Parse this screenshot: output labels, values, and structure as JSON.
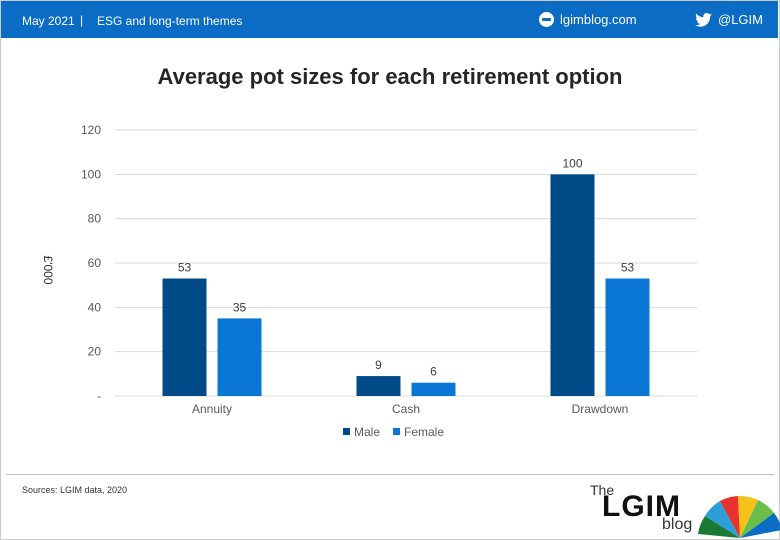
{
  "header": {
    "date": "May 2021",
    "separator": "|",
    "theme": "ESG and long-term themes",
    "site": "lgimblog.com",
    "twitter": "@LGIM"
  },
  "footer": {
    "source": "Sources: LGIM data, 2020",
    "logo_the": "The",
    "logo_name": "LGIM",
    "logo_blog": "blog"
  },
  "colors": {
    "header_bg": "#0a6cc4",
    "male": "#004b87",
    "female": "#0a77d4"
  },
  "chart_data": {
    "type": "bar",
    "title": "Average pot sizes for each retirement option",
    "ylabel": "£'000",
    "xlabel": "",
    "categories": [
      "Annuity",
      "Cash",
      "Drawdown"
    ],
    "series": [
      {
        "name": "Male",
        "values": [
          53,
          9,
          100
        ],
        "color": "#004b87"
      },
      {
        "name": "Female",
        "values": [
          35,
          6,
          53
        ],
        "color": "#0a77d4"
      }
    ],
    "ylim": [
      0,
      120
    ],
    "yticks": [
      "-",
      "20",
      "40",
      "60",
      "80",
      "100",
      "120"
    ],
    "ytick_values": [
      0,
      20,
      40,
      60,
      80,
      100,
      120
    ],
    "grid": true,
    "legend": "bottom"
  }
}
